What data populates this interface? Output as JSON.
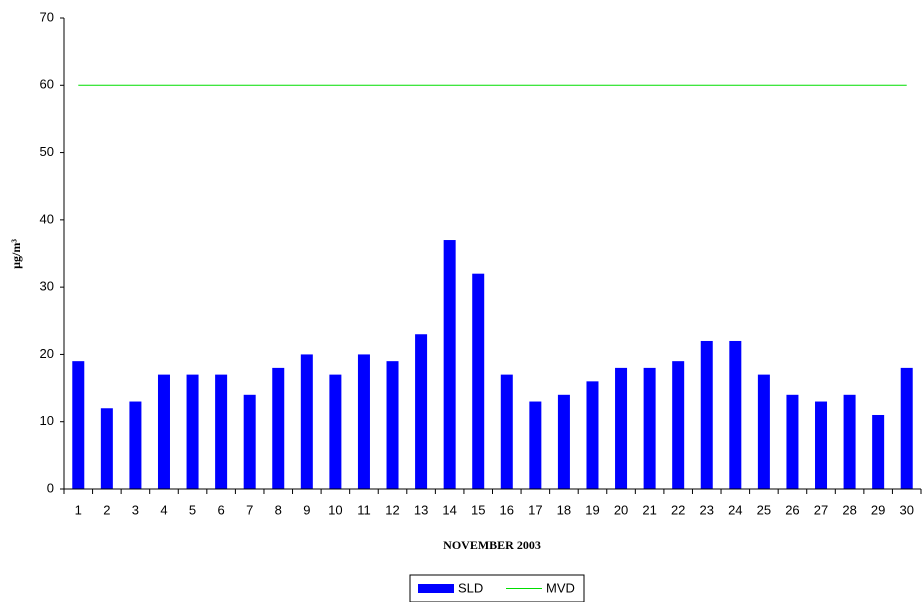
{
  "chart_data": {
    "type": "bar",
    "y_label": "µg/m³",
    "x_label": "NOVEMBER 2003",
    "categories": [
      "1",
      "2",
      "3",
      "4",
      "5",
      "6",
      "7",
      "8",
      "9",
      "10",
      "11",
      "12",
      "13",
      "14",
      "15",
      "16",
      "17",
      "18",
      "19",
      "20",
      "21",
      "22",
      "23",
      "24",
      "25",
      "26",
      "27",
      "28",
      "29",
      "30"
    ],
    "series": [
      {
        "name": "SLD",
        "type": "bar",
        "color": "#0000ff",
        "values": [
          19,
          12,
          13,
          17,
          17,
          17,
          14,
          18,
          20,
          17,
          20,
          19,
          23,
          37,
          32,
          17,
          13,
          14,
          16,
          18,
          18,
          19,
          22,
          22,
          17,
          14,
          13,
          14,
          11,
          18
        ]
      },
      {
        "name": "MVD",
        "type": "line",
        "color": "#00dd00",
        "values": [
          60,
          60,
          60,
          60,
          60,
          60,
          60,
          60,
          60,
          60,
          60,
          60,
          60,
          60,
          60,
          60,
          60,
          60,
          60,
          60,
          60,
          60,
          60,
          60,
          60,
          60,
          60,
          60,
          60,
          60
        ]
      }
    ],
    "ylim": [
      0,
      70
    ],
    "yticks": [
      0,
      10,
      20,
      30,
      40,
      50,
      60,
      70
    ],
    "grid": false,
    "legend": "bottom"
  }
}
